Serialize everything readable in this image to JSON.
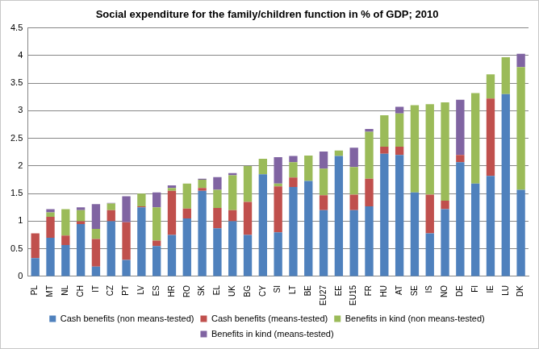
{
  "chart_data": {
    "type": "bar",
    "stacked": true,
    "title": "Social expenditure for the family/children function in % of GDP; 2010",
    "categories": [
      "PL",
      "MT",
      "NL",
      "CH",
      "IT",
      "CZ",
      "PT",
      "LV",
      "ES",
      "HR",
      "RO",
      "SK",
      "EL",
      "UK",
      "BG",
      "CY",
      "SI",
      "LT",
      "BE",
      "EU27",
      "EE",
      "EU15",
      "FR",
      "HU",
      "AT",
      "SE",
      "IS",
      "NO",
      "DE",
      "FI",
      "IE",
      "LU",
      "DK"
    ],
    "series": [
      {
        "name": "Cash benefits (non means-tested)",
        "color": "#4f81bd",
        "values": [
          0.33,
          0.7,
          0.57,
          0.95,
          0.18,
          1.0,
          0.3,
          1.25,
          0.55,
          0.75,
          1.05,
          1.55,
          0.87,
          1.0,
          0.75,
          1.85,
          0.8,
          1.62,
          1.73,
          1.2,
          2.18,
          1.2,
          1.27,
          2.22,
          2.2,
          1.52,
          0.78,
          1.22,
          2.07,
          1.68,
          1.82,
          3.3,
          1.57
        ]
      },
      {
        "name": "Cash benefits (means-tested)",
        "color": "#c0504d",
        "values": [
          0.45,
          0.38,
          0.17,
          0.05,
          0.5,
          0.2,
          0.68,
          0.02,
          0.1,
          0.8,
          0.18,
          0.05,
          0.37,
          0.2,
          0.6,
          0,
          0.83,
          0.17,
          0,
          0.27,
          0,
          0.28,
          0.5,
          0.13,
          0.15,
          0,
          0.7,
          0.15,
          0.13,
          0,
          1.4,
          0,
          0
        ]
      },
      {
        "name": "Benefits in kind (non means-tested)",
        "color": "#9bbb59",
        "values": [
          0,
          0.08,
          0.48,
          0.2,
          0.18,
          0.12,
          0,
          0.23,
          0.6,
          0.05,
          0.45,
          0.15,
          0.33,
          0.63,
          0.65,
          0.28,
          0.05,
          0.28,
          0.46,
          0.48,
          0.1,
          0.5,
          0.85,
          0.57,
          0.6,
          1.58,
          1.64,
          1.78,
          0,
          1.64,
          0.44,
          0.67,
          2.22
        ]
      },
      {
        "name": "Benefits in kind (means-tested)",
        "color": "#8064a2",
        "values": [
          0,
          0.06,
          0,
          0.05,
          0.45,
          0.01,
          0.47,
          0,
          0.27,
          0.05,
          0,
          0.02,
          0.23,
          0.04,
          0,
          0,
          0.48,
          0.11,
          0,
          0.31,
          0,
          0.35,
          0.05,
          0,
          0.12,
          0,
          0,
          0,
          1.0,
          0,
          0,
          0,
          0.24
        ]
      }
    ],
    "ylim": [
      0,
      4.5
    ],
    "yticks": [
      0,
      0.5,
      1,
      1.5,
      2,
      2.5,
      3,
      3.5,
      4,
      4.5
    ],
    "grid": true,
    "legend": "bottom"
  }
}
